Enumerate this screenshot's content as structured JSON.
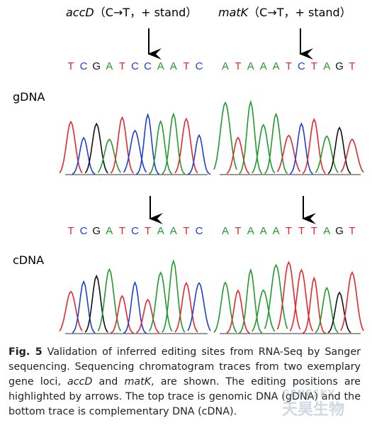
{
  "header": {
    "panels": [
      {
        "gene": "accD",
        "note": "（C→T，+ stand）"
      },
      {
        "gene": "matK",
        "note": "（C→T，+ stand）"
      }
    ]
  },
  "rows": [
    {
      "label": "gDNA",
      "sequences": [
        [
          "T",
          "C",
          "G",
          "A",
          "T",
          "C",
          "C",
          "A",
          "A",
          "T",
          "C"
        ],
        [
          "A",
          "T",
          "A",
          "A",
          "A",
          "T",
          "C",
          "T",
          "A",
          "G",
          "T"
        ]
      ]
    },
    {
      "label": "cDNA",
      "sequences": [
        [
          "T",
          "C",
          "G",
          "A",
          "T",
          "C",
          "T",
          "A",
          "A",
          "T",
          "C"
        ],
        [
          "A",
          "T",
          "A",
          "A",
          "A",
          "T",
          "T",
          "T",
          "A",
          "G",
          "T"
        ]
      ]
    }
  ],
  "caption": {
    "label": "Fig. 5",
    "runs": [
      {
        "text": " Validation of inferred editing sites from RNA-Seq by Sanger sequencing. Sequencing chromatogram traces from two exemplary gene loci, "
      },
      {
        "text": "accD",
        "italic": true
      },
      {
        "text": " and "
      },
      {
        "text": "matK",
        "italic": true
      },
      {
        "text": ", are shown. The editing positions are highlighted by arrows. The top trace is genomic DNA (gDNA) and the bottom trace is complementary DNA (cDNA)."
      }
    ]
  },
  "watermark": {
    "brand": "GENESKY",
    "name": "天昊生物"
  }
}
